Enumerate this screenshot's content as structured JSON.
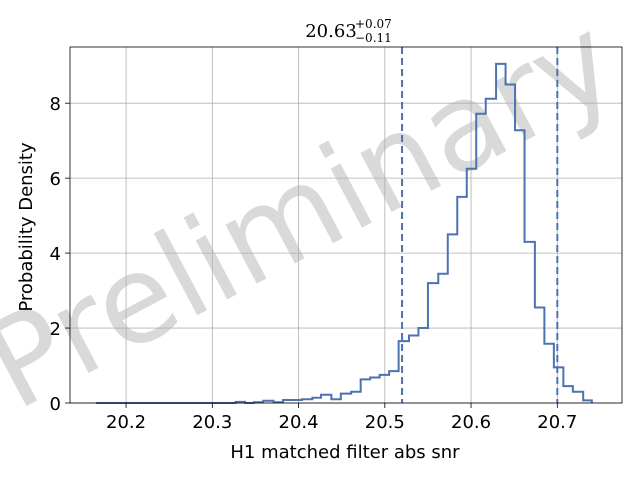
{
  "chart_data": {
    "type": "histogram",
    "title": {
      "value": "20.63",
      "upper": "+0.07",
      "lower": "−0.11"
    },
    "xlabel": "H1 matched filter abs snr",
    "ylabel": "Probability Density",
    "xlim": [
      20.135,
      20.775
    ],
    "ylim": [
      0,
      9.5
    ],
    "x_ticks": [
      20.2,
      20.3,
      20.4,
      20.5,
      20.6,
      20.7
    ],
    "x_tick_labels": [
      "20.2",
      "20.3",
      "20.4",
      "20.5",
      "20.6",
      "20.7"
    ],
    "y_ticks": [
      0,
      2,
      4,
      6,
      8
    ],
    "y_tick_labels": [
      "0",
      "2",
      "4",
      "6",
      "8"
    ],
    "grid": true,
    "bins": [
      {
        "x0": 20.165,
        "x1": 20.327,
        "y": 0.0
      },
      {
        "x0": 20.327,
        "x1": 20.338,
        "y": 0.03
      },
      {
        "x0": 20.338,
        "x1": 20.348,
        "y": 0.0
      },
      {
        "x0": 20.348,
        "x1": 20.359,
        "y": 0.02
      },
      {
        "x0": 20.359,
        "x1": 20.371,
        "y": 0.06
      },
      {
        "x0": 20.371,
        "x1": 20.382,
        "y": 0.02
      },
      {
        "x0": 20.382,
        "x1": 20.393,
        "y": 0.08
      },
      {
        "x0": 20.393,
        "x1": 20.404,
        "y": 0.08
      },
      {
        "x0": 20.404,
        "x1": 20.416,
        "y": 0.1
      },
      {
        "x0": 20.416,
        "x1": 20.426,
        "y": 0.14
      },
      {
        "x0": 20.426,
        "x1": 20.438,
        "y": 0.22
      },
      {
        "x0": 20.438,
        "x1": 20.449,
        "y": 0.1
      },
      {
        "x0": 20.449,
        "x1": 20.461,
        "y": 0.25
      },
      {
        "x0": 20.461,
        "x1": 20.472,
        "y": 0.3
      },
      {
        "x0": 20.472,
        "x1": 20.483,
        "y": 0.63
      },
      {
        "x0": 20.483,
        "x1": 20.494,
        "y": 0.68
      },
      {
        "x0": 20.494,
        "x1": 20.505,
        "y": 0.75
      },
      {
        "x0": 20.505,
        "x1": 20.516,
        "y": 0.85
      },
      {
        "x0": 20.516,
        "x1": 20.528,
        "y": 1.65
      },
      {
        "x0": 20.528,
        "x1": 20.539,
        "y": 1.8
      },
      {
        "x0": 20.539,
        "x1": 20.55,
        "y": 2.0
      },
      {
        "x0": 20.55,
        "x1": 20.562,
        "y": 3.2
      },
      {
        "x0": 20.562,
        "x1": 20.573,
        "y": 3.45
      },
      {
        "x0": 20.573,
        "x1": 20.584,
        "y": 4.5
      },
      {
        "x0": 20.584,
        "x1": 20.595,
        "y": 5.5
      },
      {
        "x0": 20.595,
        "x1": 20.606,
        "y": 6.25
      },
      {
        "x0": 20.606,
        "x1": 20.617,
        "y": 7.72
      },
      {
        "x0": 20.617,
        "x1": 20.629,
        "y": 8.12
      },
      {
        "x0": 20.629,
        "x1": 20.64,
        "y": 9.05
      },
      {
        "x0": 20.64,
        "x1": 20.651,
        "y": 8.5
      },
      {
        "x0": 20.651,
        "x1": 20.662,
        "y": 7.28
      },
      {
        "x0": 20.662,
        "x1": 20.674,
        "y": 4.3
      },
      {
        "x0": 20.674,
        "x1": 20.685,
        "y": 2.55
      },
      {
        "x0": 20.685,
        "x1": 20.696,
        "y": 1.58
      },
      {
        "x0": 20.696,
        "x1": 20.707,
        "y": 0.95
      },
      {
        "x0": 20.707,
        "x1": 20.718,
        "y": 0.45
      },
      {
        "x0": 20.718,
        "x1": 20.73,
        "y": 0.3
      },
      {
        "x0": 20.73,
        "x1": 20.74,
        "y": 0.07
      }
    ],
    "vlines": [
      20.52,
      20.7
    ],
    "watermark": "Preliminary",
    "colors": {
      "line": "#4c72b0",
      "grid": "#b0b0b0",
      "axis": "#000000",
      "watermark": "#d9d9d9"
    }
  }
}
